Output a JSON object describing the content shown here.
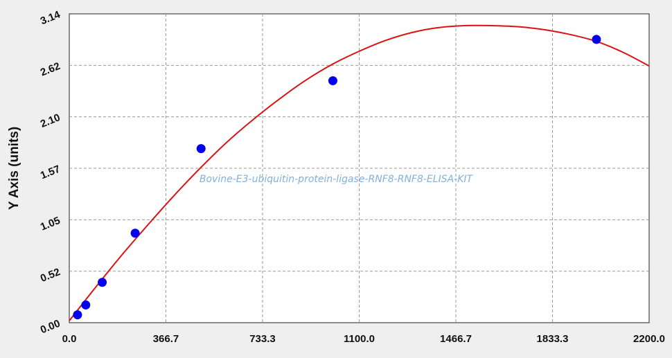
{
  "chart_data": {
    "type": "scatter",
    "title": "",
    "xlabel": "",
    "ylabel": "Y Axis (units)",
    "watermark": "Bovine-E3-ubiquitin-protein-ligase-RNF8-RNF8-ELISA-KIT",
    "xlim": [
      0,
      2200
    ],
    "ylim": [
      0,
      3.14
    ],
    "x_ticks": [
      "0.0",
      "366.7",
      "733.3",
      "1100.0",
      "1466.7",
      "1833.3",
      "2200.0"
    ],
    "y_ticks": [
      "0.00",
      "0.52",
      "1.05",
      "1.57",
      "2.10",
      "2.62",
      "3.14"
    ],
    "grid": true,
    "series": [
      {
        "kind": "points",
        "color": "#0000ee",
        "x": [
          31.25,
          62.5,
          125,
          250,
          500,
          1000,
          2000
        ],
        "y": [
          0.08,
          0.18,
          0.41,
          0.91,
          1.77,
          2.46,
          2.88
        ]
      },
      {
        "kind": "fitted-curve",
        "color": "#dd1111",
        "x": [
          0,
          100,
          200,
          300,
          400,
          500,
          600,
          700,
          800,
          900,
          1000,
          1100,
          1200,
          1300,
          1400,
          1500,
          1600,
          1700,
          1800,
          1900,
          2000,
          2100,
          2200
        ],
        "y": [
          0.02,
          0.36,
          0.69,
          1.0,
          1.3,
          1.58,
          1.84,
          2.07,
          2.28,
          2.47,
          2.63,
          2.76,
          2.87,
          2.95,
          3.0,
          3.02,
          3.02,
          3.01,
          2.98,
          2.93,
          2.86,
          2.75,
          2.61
        ]
      }
    ]
  }
}
